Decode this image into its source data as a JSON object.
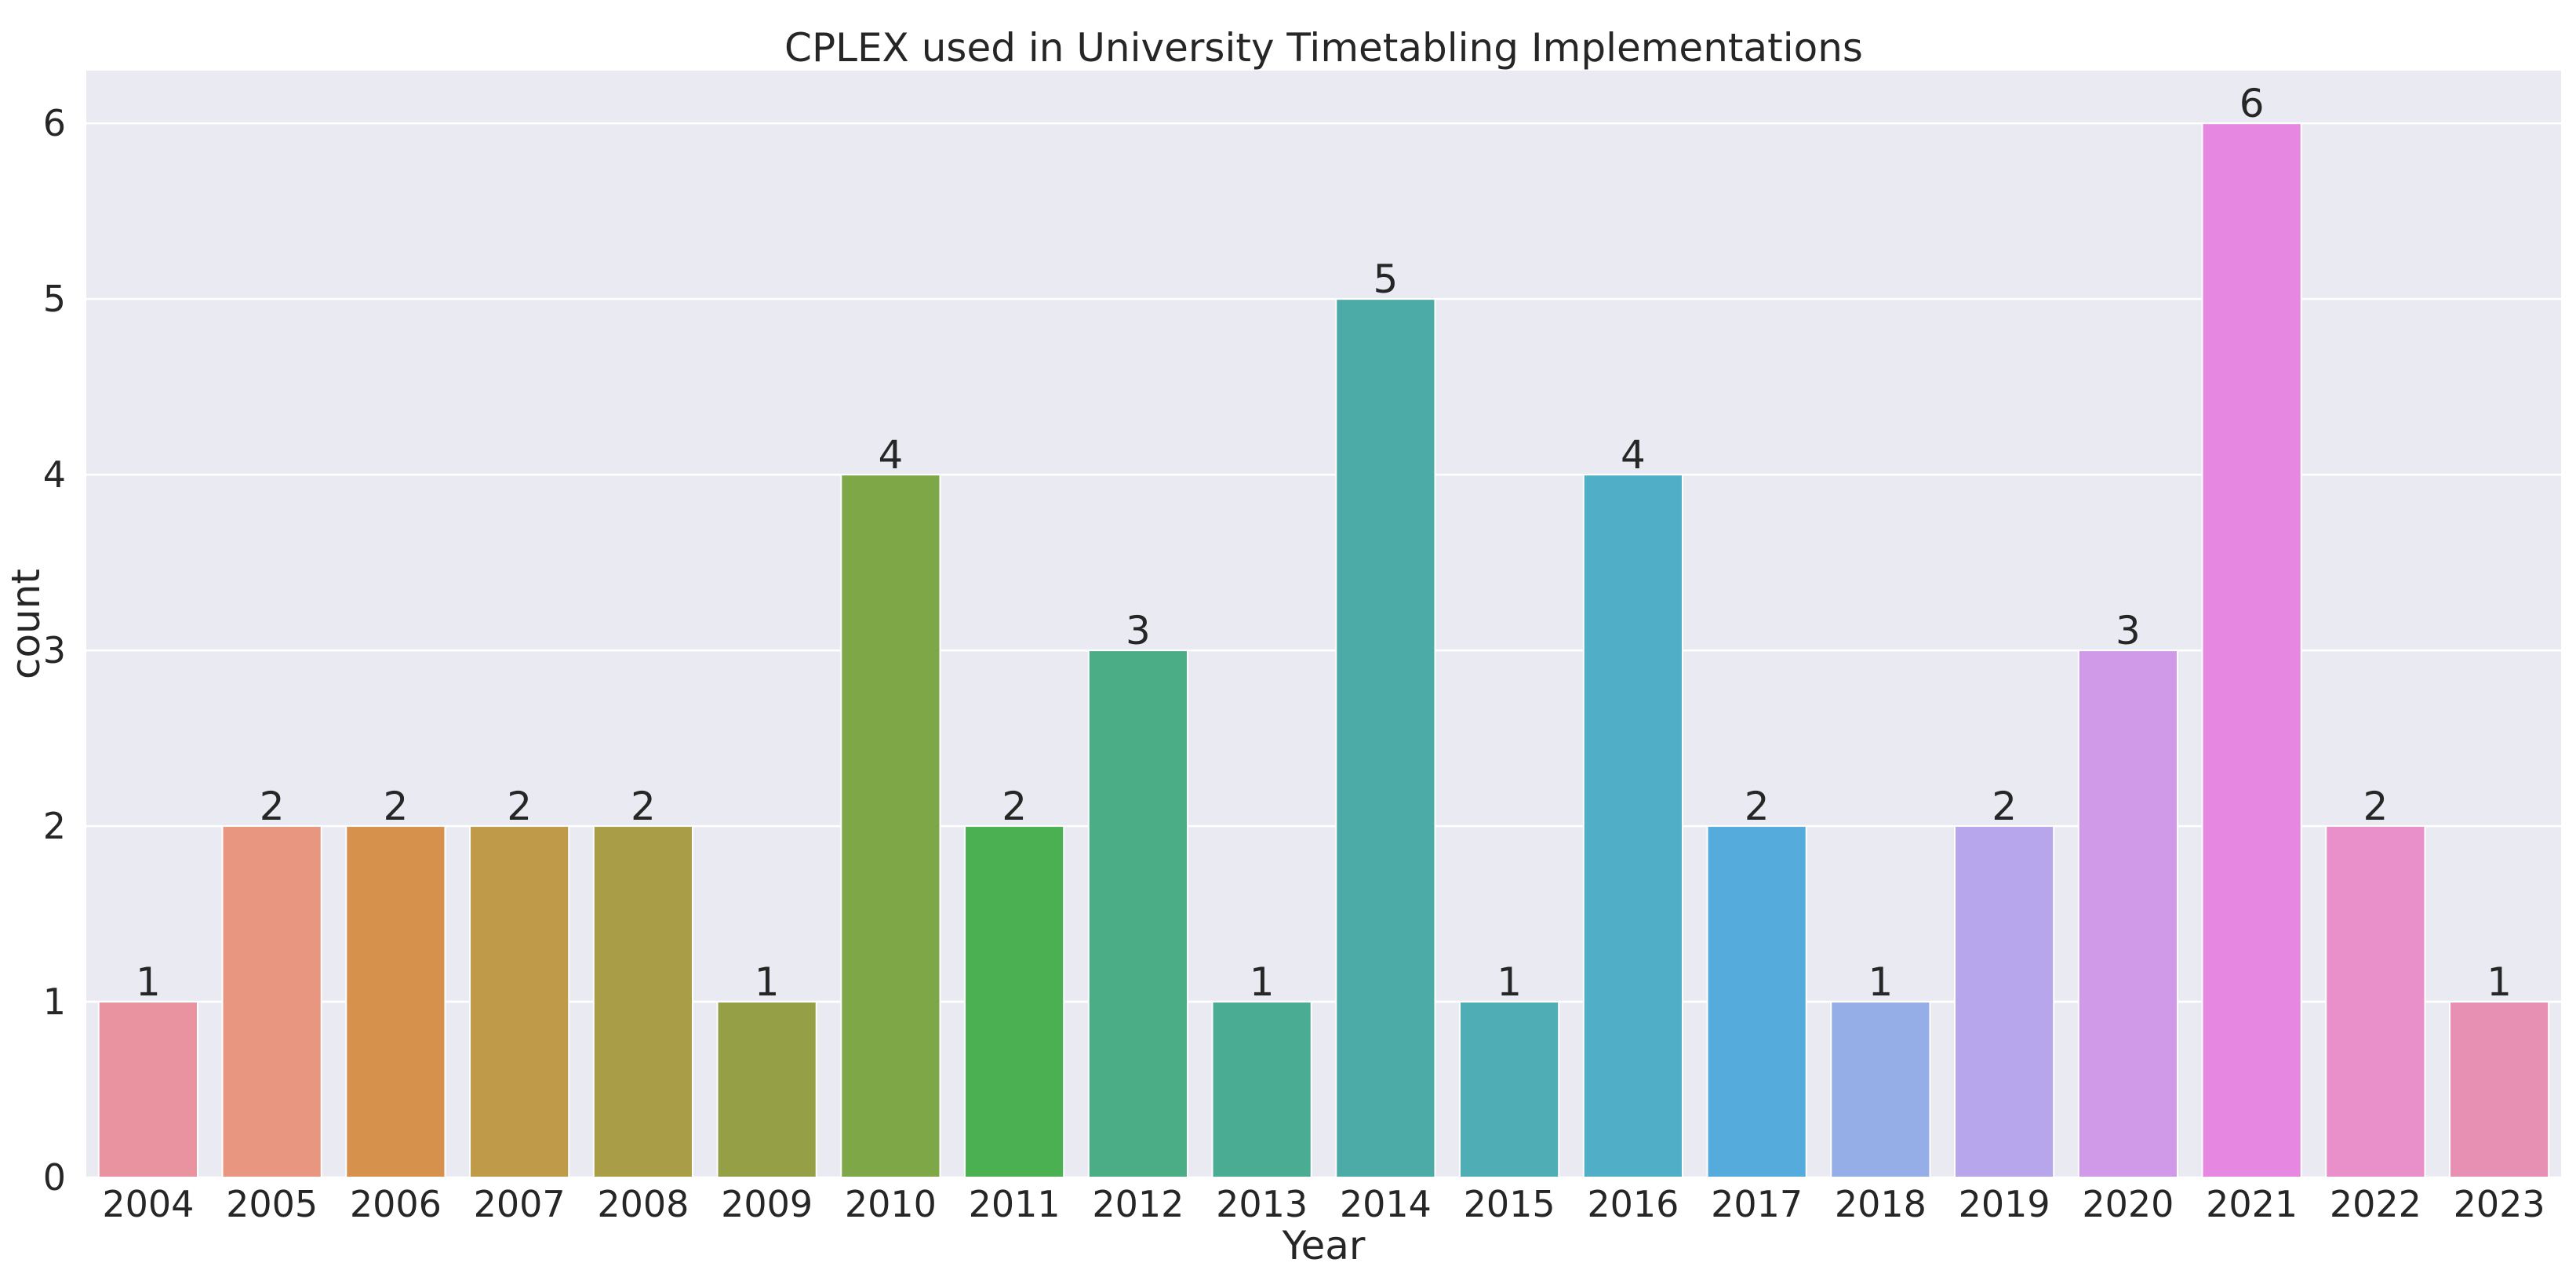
{
  "chart_data": {
    "type": "bar",
    "title": "CPLEX used in University Timetabling Implementations",
    "xlabel": "Year",
    "ylabel": "count",
    "categories": [
      "2004",
      "2005",
      "2006",
      "2007",
      "2008",
      "2009",
      "2010",
      "2011",
      "2012",
      "2013",
      "2014",
      "2015",
      "2016",
      "2017",
      "2018",
      "2019",
      "2020",
      "2021",
      "2022",
      "2023"
    ],
    "values": [
      1,
      2,
      2,
      2,
      2,
      1,
      4,
      2,
      3,
      1,
      5,
      1,
      4,
      2,
      1,
      2,
      3,
      6,
      2,
      1
    ],
    "colors": [
      "#e8939f",
      "#e8967f",
      "#d6924d",
      "#bf9a48",
      "#a99d47",
      "#959f46",
      "#7ea848",
      "#4ab052",
      "#4aad85",
      "#4aad93",
      "#4caba7",
      "#4eadb5",
      "#50aec7",
      "#55abdc",
      "#96aee8",
      "#b7a6eb",
      "#d19ae8",
      "#e688e1",
      "#e98fc9",
      "#e890b4"
    ],
    "yticks": [
      0,
      1,
      2,
      3,
      4,
      5,
      6
    ],
    "ylim": [
      0,
      6.3
    ],
    "grid": true,
    "background": "#eaeaf2"
  }
}
